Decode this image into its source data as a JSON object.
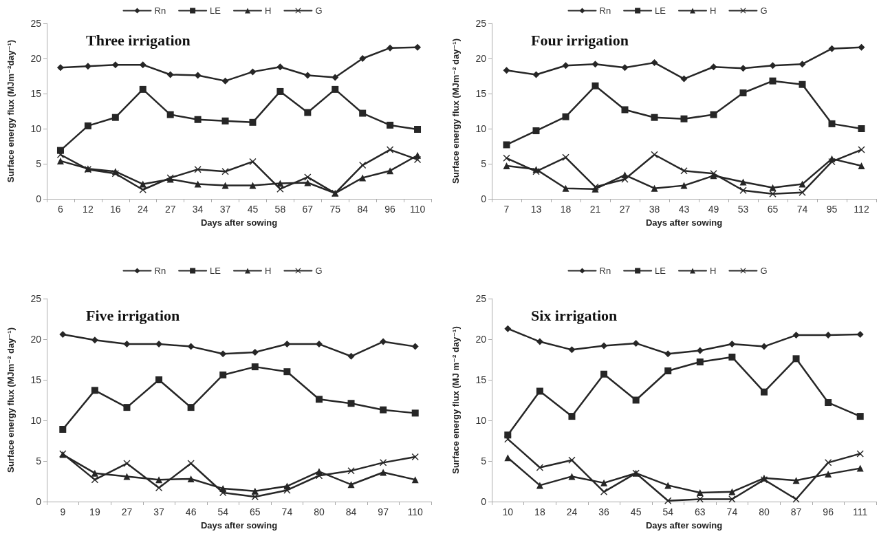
{
  "chart_data": [
    {
      "type": "line",
      "title": "Three irrigation",
      "xlabel": "Days after sowing",
      "ylabel": "Surface energy flux (MJm⁻²day⁻¹)",
      "categories": [
        "6",
        "12",
        "16",
        "24",
        "27",
        "34",
        "37",
        "45",
        "58",
        "67",
        "75",
        "84",
        "96",
        "110"
      ],
      "ylim": [
        0,
        25
      ],
      "yticks": [
        0,
        5,
        10,
        15,
        20,
        25
      ],
      "grid": false,
      "legend": "top",
      "line_style": "solid",
      "series": [
        {
          "name": "Rn",
          "color": "#262626",
          "marker": "diamond",
          "values": [
            18.7,
            18.9,
            19.1,
            19.1,
            17.7,
            17.6,
            16.8,
            18.1,
            18.8,
            17.6,
            17.3,
            20.0,
            21.5,
            21.6
          ]
        },
        {
          "name": "LE",
          "color": "#262626",
          "marker": "square",
          "values": [
            6.9,
            10.4,
            11.6,
            15.6,
            12.0,
            11.3,
            11.1,
            10.9,
            15.3,
            12.3,
            15.6,
            12.2,
            10.5,
            9.9
          ]
        },
        {
          "name": "H",
          "color": "#262626",
          "marker": "triangle",
          "values": [
            5.4,
            4.3,
            3.9,
            2.1,
            2.8,
            2.1,
            1.9,
            1.9,
            2.2,
            2.3,
            0.8,
            3.0,
            4.0,
            6.2
          ]
        },
        {
          "name": "G",
          "color": "#262626",
          "marker": "cross",
          "values": [
            6.3,
            4.2,
            3.6,
            1.3,
            3.0,
            4.2,
            3.9,
            5.3,
            1.4,
            3.1,
            0.8,
            4.8,
            7.0,
            5.6
          ]
        }
      ]
    },
    {
      "type": "line",
      "title": "Four irrigation",
      "xlabel": "Days after sowing",
      "ylabel": "Surface energy flux (MJm⁻² day⁻¹)",
      "categories": [
        "7",
        "13",
        "18",
        "21",
        "27",
        "38",
        "43",
        "49",
        "53",
        "65",
        "74",
        "95",
        "112"
      ],
      "ylim": [
        0,
        25
      ],
      "yticks": [
        0,
        5,
        10,
        15,
        20,
        25
      ],
      "grid": false,
      "legend": "top",
      "line_style": "solid",
      "series": [
        {
          "name": "Rn",
          "color": "#262626",
          "marker": "diamond",
          "values": [
            18.3,
            17.7,
            19.0,
            19.2,
            18.7,
            19.4,
            17.1,
            18.8,
            18.6,
            19.0,
            19.2,
            21.4,
            21.6
          ]
        },
        {
          "name": "LE",
          "color": "#262626",
          "marker": "square",
          "values": [
            7.7,
            9.7,
            11.7,
            16.1,
            12.7,
            11.6,
            11.4,
            12.0,
            15.1,
            16.8,
            16.3,
            10.7,
            10.0
          ]
        },
        {
          "name": "H",
          "color": "#262626",
          "marker": "triangle",
          "values": [
            4.7,
            4.2,
            1.5,
            1.4,
            3.4,
            1.5,
            1.9,
            3.3,
            2.4,
            1.6,
            2.1,
            5.7,
            4.7
          ]
        },
        {
          "name": "G",
          "color": "#262626",
          "marker": "cross",
          "values": [
            5.8,
            3.9,
            5.9,
            1.7,
            2.8,
            6.3,
            4.0,
            3.6,
            1.2,
            0.7,
            0.9,
            5.3,
            7.0
          ]
        }
      ]
    },
    {
      "type": "line",
      "title": "Five irrigation",
      "xlabel": "Days after sowing",
      "ylabel": "Surface energy flux (MJm⁻² day⁻¹)",
      "categories": [
        "9",
        "19",
        "27",
        "37",
        "46",
        "54",
        "65",
        "74",
        "80",
        "84",
        "97",
        "110"
      ],
      "ylim": [
        0,
        25
      ],
      "yticks": [
        0,
        5,
        10,
        15,
        20,
        25
      ],
      "grid": false,
      "legend": "top",
      "line_style": "solid",
      "series": [
        {
          "name": "Rn",
          "color": "#262626",
          "marker": "diamond",
          "values": [
            20.6,
            19.9,
            19.4,
            19.4,
            19.1,
            18.2,
            18.4,
            19.4,
            19.4,
            17.9,
            19.7,
            19.1
          ]
        },
        {
          "name": "LE",
          "color": "#262626",
          "marker": "square",
          "values": [
            8.9,
            13.7,
            11.6,
            15.0,
            11.6,
            15.6,
            16.6,
            16.0,
            12.6,
            12.1,
            11.3,
            10.9
          ]
        },
        {
          "name": "H",
          "color": "#262626",
          "marker": "triangle",
          "values": [
            5.8,
            3.5,
            3.1,
            2.7,
            2.8,
            1.6,
            1.3,
            1.9,
            3.7,
            2.1,
            3.6,
            2.7
          ]
        },
        {
          "name": "G",
          "color": "#262626",
          "marker": "cross",
          "values": [
            5.9,
            2.7,
            4.7,
            1.7,
            4.7,
            1.1,
            0.6,
            1.4,
            3.2,
            3.8,
            4.8,
            5.5
          ]
        }
      ]
    },
    {
      "type": "line",
      "title": "Six irrigation",
      "xlabel": "Days after sowing",
      "ylabel": "Surface energy flux (MJ m⁻² day⁻¹)",
      "categories": [
        "10",
        "18",
        "24",
        "36",
        "45",
        "54",
        "63",
        "74",
        "80",
        "87",
        "96",
        "111"
      ],
      "ylim": [
        0,
        25
      ],
      "yticks": [
        0,
        5,
        10,
        15,
        20,
        25
      ],
      "grid": false,
      "legend": "top",
      "line_style": "solid",
      "series": [
        {
          "name": "Rn",
          "color": "#262626",
          "marker": "diamond",
          "values": [
            21.3,
            19.7,
            18.7,
            19.2,
            19.5,
            18.2,
            18.6,
            19.4,
            19.1,
            20.5,
            20.5,
            20.6
          ]
        },
        {
          "name": "LE",
          "color": "#262626",
          "marker": "square",
          "values": [
            8.2,
            13.6,
            10.5,
            15.7,
            12.5,
            16.1,
            17.2,
            17.8,
            13.5,
            17.6,
            12.2,
            10.5
          ]
        },
        {
          "name": "H",
          "color": "#262626",
          "marker": "triangle",
          "values": [
            5.4,
            2.0,
            3.1,
            2.3,
            3.5,
            2.0,
            1.1,
            1.2,
            2.9,
            2.6,
            3.4,
            4.1
          ]
        },
        {
          "name": "G",
          "color": "#262626",
          "marker": "cross",
          "values": [
            7.7,
            4.2,
            5.1,
            1.2,
            3.5,
            0.1,
            0.3,
            0.3,
            2.7,
            0.3,
            4.8,
            5.9
          ]
        }
      ]
    }
  ]
}
